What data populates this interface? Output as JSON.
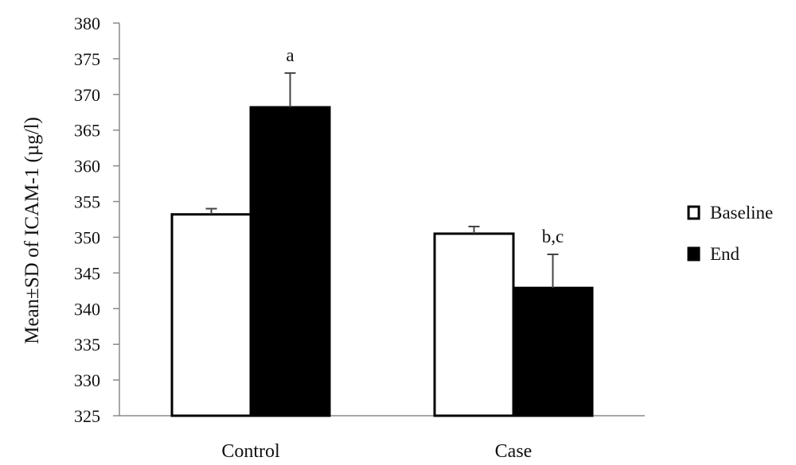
{
  "chart_data": {
    "type": "bar",
    "categories": [
      "Control",
      "Case"
    ],
    "series": [
      {
        "name": "Baseline",
        "values": [
          353.2,
          350.5
        ],
        "sd": [
          0.8,
          1.0
        ],
        "color": "#ffffff"
      },
      {
        "name": "End",
        "values": [
          368.2,
          342.9
        ],
        "sd": [
          4.8,
          4.7
        ],
        "color": "#000000"
      }
    ],
    "annotations": [
      {
        "series": 1,
        "category": 0,
        "text": "a"
      },
      {
        "series": 1,
        "category": 1,
        "text": "b,c"
      }
    ],
    "ylabel": "Mean±SD  of ICAM-1 (µg/l)",
    "xlabel": "",
    "ylim": [
      325,
      380
    ],
    "yticks": [
      325,
      330,
      335,
      340,
      345,
      350,
      355,
      360,
      365,
      370,
      375,
      380
    ],
    "grid": false,
    "legend_position": "right"
  }
}
